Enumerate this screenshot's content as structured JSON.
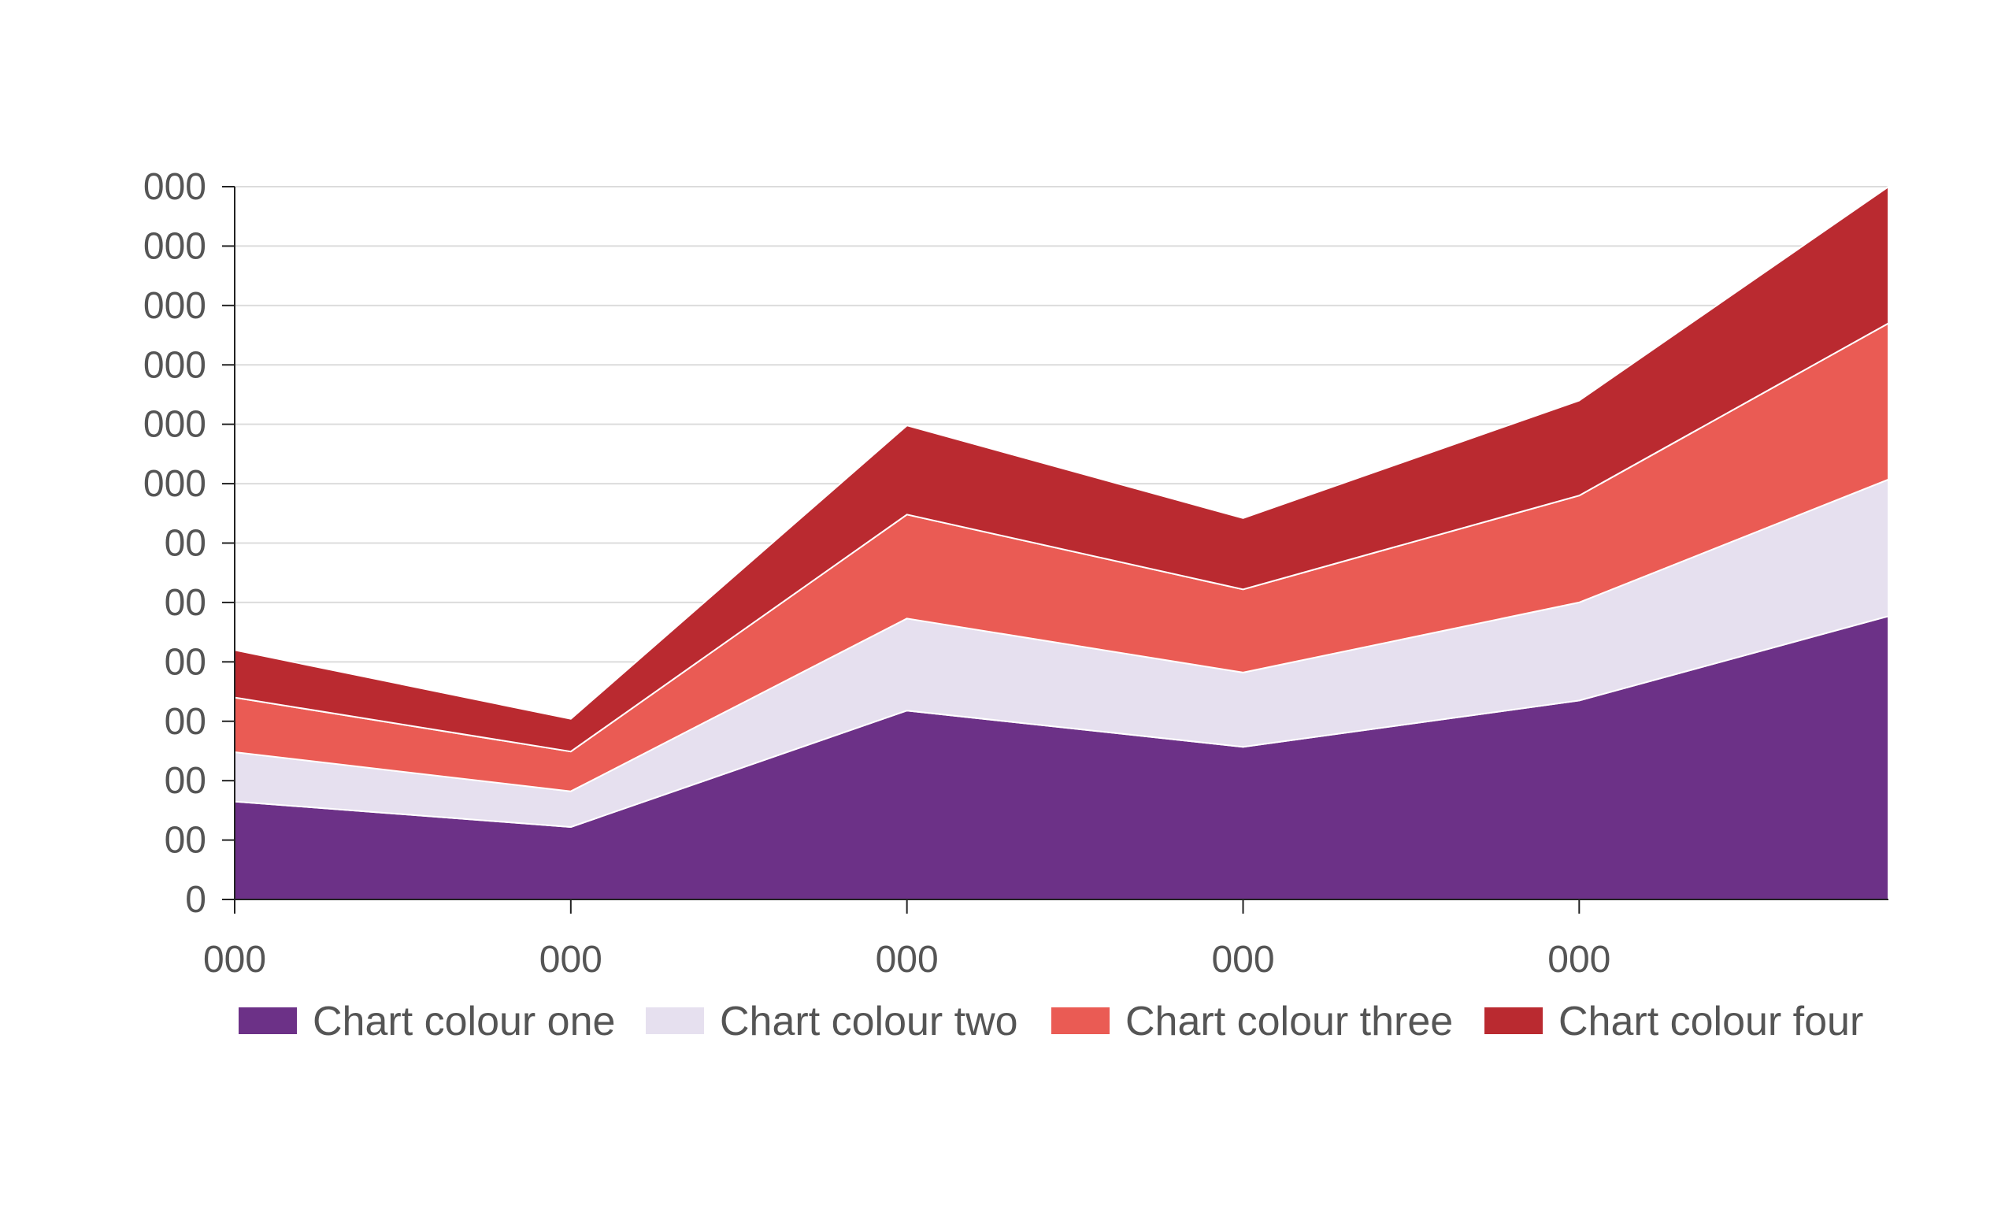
{
  "chart_data": {
    "type": "area",
    "stacked": true,
    "title": "",
    "xlabel": "",
    "ylabel": "",
    "categories": [
      "000",
      "000",
      "000",
      "000",
      "000",
      ""
    ],
    "x": [
      0,
      1,
      2,
      3,
      4,
      4.92
    ],
    "ylim": [
      0,
      12
    ],
    "y_tick_values": [
      0,
      1,
      2,
      3,
      4,
      5,
      6,
      7,
      8,
      9,
      10,
      11,
      12
    ],
    "y_tick_labels": [
      "0",
      "00",
      "00",
      "00",
      "00",
      "00",
      "00",
      "000",
      "000",
      "000",
      "000",
      "000",
      "000"
    ],
    "x_tick_labels": [
      "000",
      "000",
      "000",
      "000",
      "000"
    ],
    "grid": true,
    "legend_position": "bottom",
    "series": [
      {
        "name": "Chart colour one",
        "color": "#6C3187",
        "values": [
          1.65,
          1.22,
          3.18,
          2.57,
          3.35,
          4.77
        ]
      },
      {
        "name": "Chart colour two",
        "color": "#E6E0EF",
        "values": [
          0.83,
          0.6,
          1.55,
          1.25,
          1.65,
          2.3
        ]
      },
      {
        "name": "Chart colour three",
        "color": "#EA5B54",
        "values": [
          0.92,
          0.67,
          1.75,
          1.4,
          1.8,
          2.63
        ]
      },
      {
        "name": "Chart colour four",
        "color": "#BA2A30",
        "values": [
          0.8,
          0.55,
          1.5,
          1.2,
          1.6,
          2.3
        ]
      }
    ]
  }
}
